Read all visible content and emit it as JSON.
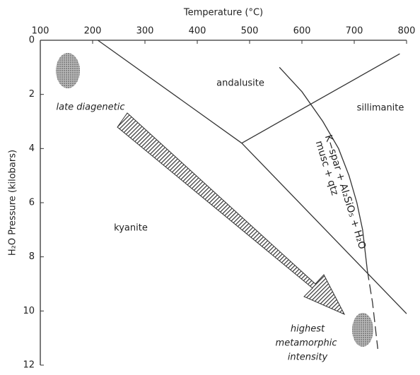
{
  "chart_data": {
    "type": "line",
    "xlabel": "Temperature (°C)",
    "ylabel": "H₂O Pressure (kilobars)",
    "xlim": [
      100,
      800
    ],
    "xticks": [
      100,
      200,
      300,
      400,
      500,
      600,
      700,
      800
    ],
    "ylim": [
      0,
      12
    ],
    "yticks": [
      0,
      2,
      4,
      6,
      8,
      10,
      12
    ],
    "y_inverted": true,
    "series": [
      {
        "color": "#333333",
        "x": [
          210,
          485
        ],
        "values": [
          0,
          3.8
        ]
      },
      {
        "color": "#333333",
        "x": [
          485,
          800
        ],
        "values": [
          3.8,
          10.1
        ]
      },
      {
        "color": "#333333",
        "x": [
          485,
          787
        ],
        "values": [
          3.8,
          0.5
        ]
      },
      {
        "color": "#333333",
        "x": [
          557,
          600,
          640,
          670,
          690,
          705,
          716,
          725
        ],
        "values": [
          1.0,
          1.9,
          3.0,
          4.0,
          5.0,
          6.0,
          7.0,
          8.5
        ]
      },
      {
        "color": "#333333",
        "dashed": true,
        "x": [
          725,
          735,
          745
        ],
        "values": [
          8.5,
          9.7,
          11.4
        ]
      }
    ],
    "annotations": [
      "andalusite",
      "sillimanite",
      "kyanite",
      "late diagenetic",
      "highest",
      "metamorphic",
      "intensity",
      "K−spar + Al₂SiO₅ + H₂O",
      "musc + qtz"
    ]
  }
}
